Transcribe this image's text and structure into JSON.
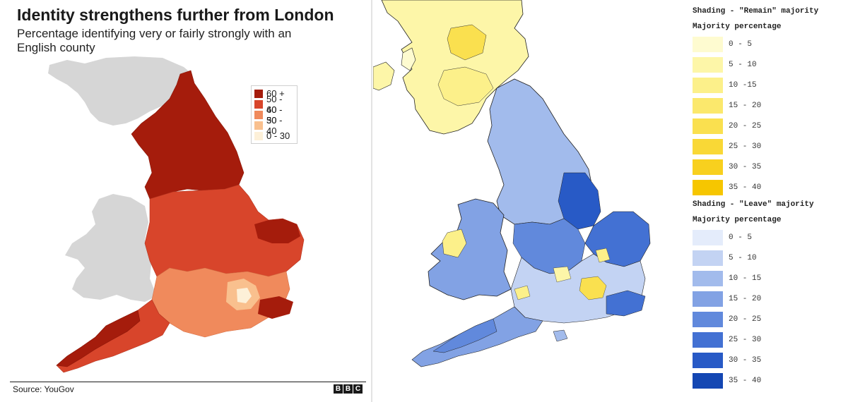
{
  "left": {
    "title": "Identity strengthens further from London",
    "subtitle": "Percentage identifying very or fairly strongly with an English county",
    "legend": [
      {
        "label": "60 +",
        "color": "#a51c0c"
      },
      {
        "label": "50 - 60",
        "color": "#d8452b"
      },
      {
        "label": "40 - 50",
        "color": "#f08a5c"
      },
      {
        "label": "30 - 40",
        "color": "#f9c08e"
      },
      {
        "label": "0 - 30",
        "color": "#fdf0d8"
      }
    ],
    "source": "Source: YouGov",
    "logo_letters": [
      "B",
      "B",
      "C"
    ]
  },
  "right": {
    "remain_heading": "Shading - \"Remain\" majority",
    "remain_subheading": "Majority percentage",
    "remain_legend": [
      {
        "label": "0 - 5",
        "color": "#fefbd0"
      },
      {
        "label": "5 - 10",
        "color": "#fdf6a8"
      },
      {
        "label": "10 -15",
        "color": "#fcf08a"
      },
      {
        "label": "15 - 20",
        "color": "#fbe86c"
      },
      {
        "label": "20 - 25",
        "color": "#fae04f"
      },
      {
        "label": "25 - 30",
        "color": "#f9d836"
      },
      {
        "label": "30 - 35",
        "color": "#f8d01e"
      },
      {
        "label": "35 - 40",
        "color": "#f6c600"
      }
    ],
    "leave_heading": "Shading - \"Leave\" majority",
    "leave_subheading": "Majority percentage",
    "leave_legend": [
      {
        "label": "0 - 5",
        "color": "#e4ecfb"
      },
      {
        "label": "5 - 10",
        "color": "#c3d3f3"
      },
      {
        "label": "10 - 15",
        "color": "#a2bbec"
      },
      {
        "label": "15 - 20",
        "color": "#82a2e4"
      },
      {
        "label": "20 - 25",
        "color": "#6189dc"
      },
      {
        "label": "25 - 30",
        "color": "#4371d3"
      },
      {
        "label": "30 - 35",
        "color": "#285ac6"
      },
      {
        "label": "35 - 40",
        "color": "#1447b3"
      }
    ]
  },
  "map_colors": {
    "land_grey": "#d6d6d6",
    "coast": "#111111"
  }
}
